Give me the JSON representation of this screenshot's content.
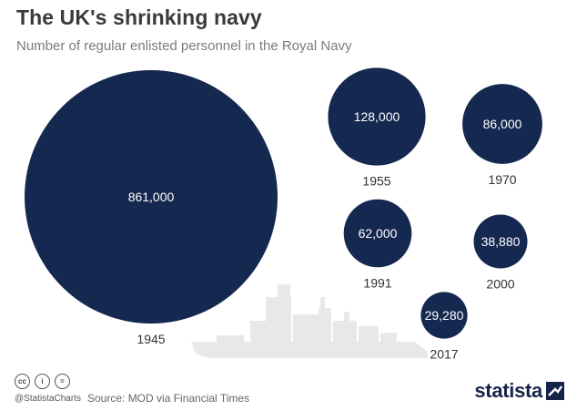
{
  "title": "The UK's shrinking navy",
  "subtitle": "Number of regular enlisted personnel in the Royal Navy",
  "chart_data": {
    "type": "bubble",
    "title": "The UK's shrinking navy",
    "subtitle": "Number of regular enlisted personnel in the Royal Navy",
    "categories": [
      "1945",
      "1955",
      "1970",
      "1991",
      "2000",
      "2017"
    ],
    "values": [
      861000,
      128000,
      86000,
      62000,
      38880,
      29280
    ],
    "value_labels": [
      "861,000",
      "128,000",
      "86,000",
      "62,000",
      "38,880",
      "29,280"
    ],
    "colors": {
      "bubble": "#15284f",
      "ship": "#e8e8e8"
    }
  },
  "footer": {
    "handle": "@StatistaCharts",
    "source": "Source: MOD via Financial Times",
    "brand": "statista",
    "icons": [
      "cc-icon",
      "attribution-icon",
      "equals-icon"
    ]
  }
}
